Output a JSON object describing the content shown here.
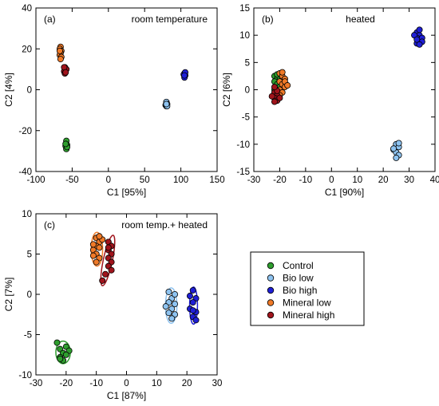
{
  "chart_data": [
    {
      "type": "scatter",
      "panel_label": "(a)",
      "title": "room temperature",
      "xlabel": "C1 [95%]",
      "ylabel": "C2 [4%]",
      "xlim": [
        -100,
        150
      ],
      "ylim": [
        -40,
        40
      ],
      "xticks": [
        -100,
        -50,
        0,
        50,
        100,
        150
      ],
      "yticks": [
        -40,
        -20,
        0,
        20,
        40
      ],
      "grid": false,
      "series": [
        {
          "name": "Control",
          "color": "#2e9e2e",
          "points": [
            [
              -58,
              -25
            ],
            [
              -57,
              -27
            ],
            [
              -59,
              -27.5
            ],
            [
              -58,
              -29
            ],
            [
              -57,
              -28
            ],
            [
              -59,
              -26.5
            ]
          ]
        },
        {
          "name": "Bio low",
          "color": "#8ec3f0",
          "points": [
            [
              80,
              -6
            ],
            [
              81,
              -7
            ],
            [
              79,
              -7.5
            ],
            [
              80,
              -8
            ],
            [
              81,
              -8
            ],
            [
              80,
              -7
            ]
          ]
        },
        {
          "name": "Bio high",
          "color": "#1f1fd6",
          "points": [
            [
              105,
              8
            ],
            [
              106,
              7
            ],
            [
              104,
              7.5
            ],
            [
              105,
              6
            ],
            [
              106,
              8.5
            ],
            [
              105,
              7
            ]
          ]
        },
        {
          "name": "Mineral low",
          "color": "#f07a28",
          "points": [
            [
              -66,
              21
            ],
            [
              -67,
              20
            ],
            [
              -65,
              19
            ],
            [
              -66,
              18
            ],
            [
              -67,
              17
            ],
            [
              -65,
              16
            ],
            [
              -66,
              15
            ],
            [
              -67,
              19
            ]
          ]
        },
        {
          "name": "Mineral high",
          "color": "#a0141c",
          "points": [
            [
              -60,
              11
            ],
            [
              -59,
              10
            ],
            [
              -61,
              9
            ],
            [
              -60,
              8
            ],
            [
              -58,
              10
            ],
            [
              -61,
              11
            ],
            [
              -59,
              8.5
            ]
          ]
        }
      ]
    },
    {
      "type": "scatter",
      "panel_label": "(b)",
      "title": "heated",
      "xlabel": "C1 [90%]",
      "ylabel": "C2 [6%]",
      "xlim": [
        -30,
        40
      ],
      "ylim": [
        -15,
        15
      ],
      "xticks": [
        -30,
        -20,
        -10,
        0,
        10,
        20,
        30,
        40
      ],
      "yticks": [
        -15,
        -10,
        -5,
        0,
        5,
        10,
        15
      ],
      "grid": false,
      "series": [
        {
          "name": "Control",
          "color": "#2e9e2e",
          "points": [
            [
              -22,
              2.5
            ],
            [
              -21,
              2
            ],
            [
              -20,
              2.3
            ],
            [
              -22,
              1.5
            ],
            [
              -21,
              1
            ],
            [
              -20,
              0.5
            ],
            [
              -22,
              0
            ],
            [
              -21,
              -0.5
            ],
            [
              -19,
              1.8
            ],
            [
              -21,
              2.8
            ]
          ]
        },
        {
          "name": "Bio low",
          "color": "#8ec3f0",
          "points": [
            [
              25,
              -10
            ],
            [
              26,
              -10.5
            ],
            [
              24,
              -11
            ],
            [
              25,
              -11.5
            ],
            [
              26,
              -12
            ],
            [
              25,
              -12.5
            ],
            [
              24,
              -10.8
            ],
            [
              26,
              -9.8
            ]
          ]
        },
        {
          "name": "Bio high",
          "color": "#1f1fd6",
          "points": [
            [
              33,
              10.5
            ],
            [
              34,
              10
            ],
            [
              33,
              9.5
            ],
            [
              34,
              9
            ],
            [
              35,
              9.5
            ],
            [
              33,
              8.5
            ],
            [
              32,
              10
            ],
            [
              34,
              11
            ],
            [
              35,
              8.8
            ],
            [
              33,
              9.2
            ],
            [
              34,
              8.3
            ]
          ]
        },
        {
          "name": "Mineral low",
          "color": "#f07a28",
          "points": [
            [
              -20,
              3
            ],
            [
              -19,
              2.5
            ],
            [
              -18,
              2
            ],
            [
              -20,
              1.5
            ],
            [
              -19,
              1
            ],
            [
              -18,
              0.5
            ],
            [
              -20,
              0
            ],
            [
              -19,
              -0.5
            ],
            [
              -18,
              1.5
            ],
            [
              -17,
              0.8
            ],
            [
              -19,
              3.2
            ],
            [
              -20,
              -1
            ]
          ]
        },
        {
          "name": "Mineral high",
          "color": "#a0141c",
          "points": [
            [
              -22,
              -0.5
            ],
            [
              -21,
              -1
            ],
            [
              -22,
              -1.5
            ],
            [
              -21,
              -2
            ],
            [
              -23,
              -1.2
            ],
            [
              -22,
              -2.2
            ],
            [
              -21,
              -0.2
            ],
            [
              -20,
              -1.5
            ],
            [
              -22,
              0.5
            ]
          ]
        }
      ]
    },
    {
      "type": "scatter",
      "panel_label": "(c)",
      "title": "room temp.+ heated",
      "xlabel": "C1 [87%]",
      "ylabel": "C2 [7%]",
      "xlim": [
        -30,
        30
      ],
      "ylim": [
        -10,
        10
      ],
      "xticks": [
        -30,
        -20,
        -10,
        0,
        10,
        20,
        30
      ],
      "yticks": [
        -10,
        -5,
        0,
        5,
        10
      ],
      "grid": false,
      "legend": {
        "placement": "center-right",
        "entries": [
          {
            "label": "Control",
            "color": "#2e9e2e"
          },
          {
            "label": "Bio low",
            "color": "#8ec3f0"
          },
          {
            "label": "Bio high",
            "color": "#1f1fd6"
          },
          {
            "label": "Mineral low",
            "color": "#f07a28"
          },
          {
            "label": "Mineral high",
            "color": "#a0141c"
          }
        ]
      },
      "series": [
        {
          "name": "Control",
          "color": "#2e9e2e",
          "points": [
            [
              -23,
              -6
            ],
            [
              -22,
              -6.8
            ],
            [
              -21,
              -7.3
            ],
            [
              -20,
              -6.5
            ],
            [
              -22,
              -7.8
            ],
            [
              -21,
              -8.2
            ],
            [
              -19,
              -7
            ],
            [
              -20,
              -7.5
            ],
            [
              -22,
              -8
            ]
          ],
          "ellipse": {
            "cx": -21,
            "cy": -7.2,
            "rx": 2.4,
            "ry": 1.4,
            "angle": 0
          }
        },
        {
          "name": "Bio low",
          "color": "#8ec3f0",
          "points": [
            [
              14,
              0.3
            ],
            [
              15,
              -0.5
            ],
            [
              14,
              -1
            ],
            [
              16,
              -1.2
            ],
            [
              15,
              -1.8
            ],
            [
              14,
              -2.3
            ],
            [
              16,
              -2.5
            ],
            [
              15,
              -3
            ],
            [
              13,
              -1.5
            ],
            [
              16,
              0
            ]
          ],
          "ellipse": {
            "cx": 14.8,
            "cy": -1.4,
            "rx": 1.9,
            "ry": 2.2,
            "angle": 0
          }
        },
        {
          "name": "Bio high",
          "color": "#1f1fd6",
          "points": [
            [
              22,
              0.5
            ],
            [
              23,
              -0.5
            ],
            [
              22,
              -1
            ],
            [
              21,
              -1.8
            ],
            [
              23,
              -2.2
            ],
            [
              22,
              -2.8
            ],
            [
              23,
              -3.2
            ],
            [
              21,
              -0.2
            ],
            [
              22,
              -2
            ]
          ],
          "ellipse": {
            "cx": 22.2,
            "cy": -1.4,
            "rx": 1.3,
            "ry": 2.3,
            "angle": 0
          }
        },
        {
          "name": "Mineral low",
          "color": "#f07a28",
          "points": [
            [
              -10,
              7
            ],
            [
              -9,
              6.5
            ],
            [
              -10,
              6
            ],
            [
              -11,
              5.5
            ],
            [
              -9,
              5.8
            ],
            [
              -10,
              5
            ],
            [
              -11,
              4.8
            ],
            [
              -9,
              4.5
            ],
            [
              -10,
              4
            ],
            [
              -8,
              6.8
            ],
            [
              -11,
              6.2
            ],
            [
              -9,
              7.2
            ]
          ],
          "ellipse": {
            "cx": -9.8,
            "cy": 5.6,
            "rx": 1.9,
            "ry": 2.1,
            "angle": 0
          }
        },
        {
          "name": "Mineral high",
          "color": "#a0141c",
          "points": [
            [
              -6,
              6.5
            ],
            [
              -5,
              6
            ],
            [
              -6,
              5.5
            ],
            [
              -5,
              5
            ],
            [
              -6,
              4.5
            ],
            [
              -5,
              4
            ],
            [
              -6,
              3.5
            ],
            [
              -5,
              3
            ],
            [
              -7,
              2.5
            ],
            [
              -8,
              1.7
            ],
            [
              -6,
              5.8
            ]
          ],
          "ellipse": {
            "cx": -6.2,
            "cy": 4.2,
            "rx": 1.5,
            "ry": 3.2,
            "angle": 12
          }
        }
      ]
    }
  ]
}
